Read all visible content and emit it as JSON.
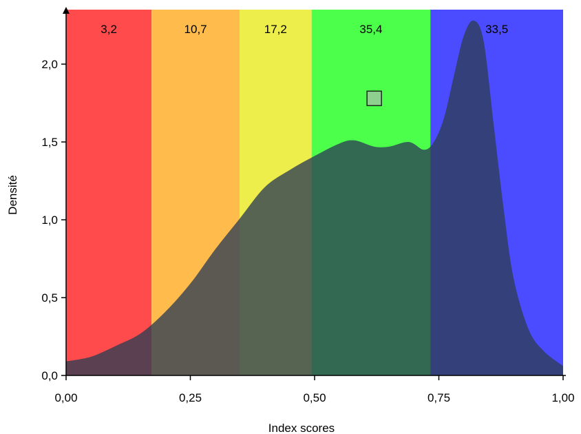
{
  "chart_data": {
    "type": "area",
    "xlabel": "Index scores",
    "ylabel": "Densité",
    "xlim": [
      0,
      1
    ],
    "ylim": [
      0,
      2.35
    ],
    "x_ticks": [
      0,
      0.25,
      0.5,
      0.75,
      1
    ],
    "x_tick_labels": [
      "0,00",
      "0,25",
      "0,50",
      "0,75",
      "1,00"
    ],
    "y_ticks": [
      0,
      0.5,
      1,
      1.5,
      2
    ],
    "y_tick_labels": [
      "0,0",
      "0,5",
      "1,0",
      "1,5",
      "2,0"
    ],
    "bands": [
      {
        "from": 0.0,
        "to": 0.172,
        "label": "3,2",
        "color": "#ff4b4b"
      },
      {
        "from": 0.172,
        "to": 0.349,
        "label": "10,7",
        "color": "#ffbb4b"
      },
      {
        "from": 0.349,
        "to": 0.494,
        "label": "17,2",
        "color": "#eded4b"
      },
      {
        "from": 0.494,
        "to": 0.733,
        "label": "35,4",
        "color": "#4bff4b"
      },
      {
        "from": 0.733,
        "to": 1.0,
        "label": "33,5",
        "color": "#4b4bff"
      }
    ],
    "density": {
      "color": "#2d3d55",
      "opacity": 0.78,
      "x": [
        0.0,
        0.05,
        0.1,
        0.15,
        0.2,
        0.25,
        0.3,
        0.35,
        0.4,
        0.45,
        0.5,
        0.55,
        0.58,
        0.62,
        0.65,
        0.69,
        0.72,
        0.74,
        0.76,
        0.78,
        0.8,
        0.82,
        0.84,
        0.86,
        0.88,
        0.9,
        0.93,
        0.96,
        1.0
      ],
      "y": [
        0.09,
        0.12,
        0.19,
        0.27,
        0.41,
        0.59,
        0.81,
        1.01,
        1.21,
        1.32,
        1.41,
        1.49,
        1.51,
        1.47,
        1.47,
        1.5,
        1.45,
        1.5,
        1.65,
        1.92,
        2.18,
        2.28,
        2.15,
        1.62,
        1.08,
        0.63,
        0.3,
        0.16,
        0.06
      ]
    },
    "marker": {
      "x": 0.62,
      "y": 1.78,
      "color": "#8fcf8f"
    }
  }
}
